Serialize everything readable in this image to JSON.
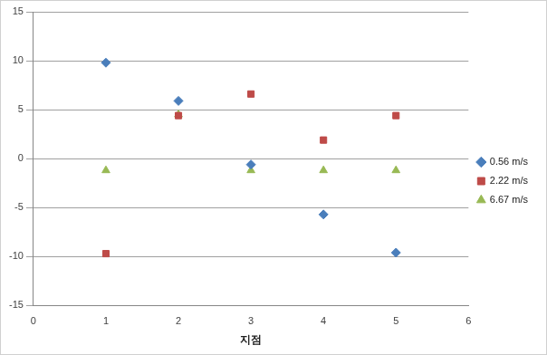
{
  "chart_data": {
    "type": "scatter",
    "x_label": "지점",
    "xlim": [
      0,
      6
    ],
    "xticks": [
      0,
      1,
      2,
      3,
      4,
      5,
      6
    ],
    "ylim": [
      -15,
      15
    ],
    "yticks": [
      -15,
      -10,
      -5,
      0,
      5,
      10,
      15
    ],
    "grid": "y",
    "legend": "right",
    "series": [
      {
        "name": "0.56 m/s",
        "color": "#4a7ebb",
        "marker": "diamond",
        "x": [
          1,
          2,
          3,
          4,
          5
        ],
        "values": [
          9.8,
          5.9,
          -0.6,
          -5.7,
          -9.6
        ]
      },
      {
        "name": "2.22 m/s",
        "color": "#be4b48",
        "marker": "square",
        "x": [
          1,
          2,
          3,
          4,
          5
        ],
        "values": [
          -9.7,
          4.4,
          6.6,
          1.9,
          4.4
        ]
      },
      {
        "name": "6.67 m/s",
        "color": "#98b954",
        "marker": "triangle",
        "x": [
          1,
          2,
          3,
          4,
          5
        ],
        "values": [
          -1.2,
          4.5,
          -1.2,
          -1.2,
          -1.2
        ]
      }
    ]
  }
}
